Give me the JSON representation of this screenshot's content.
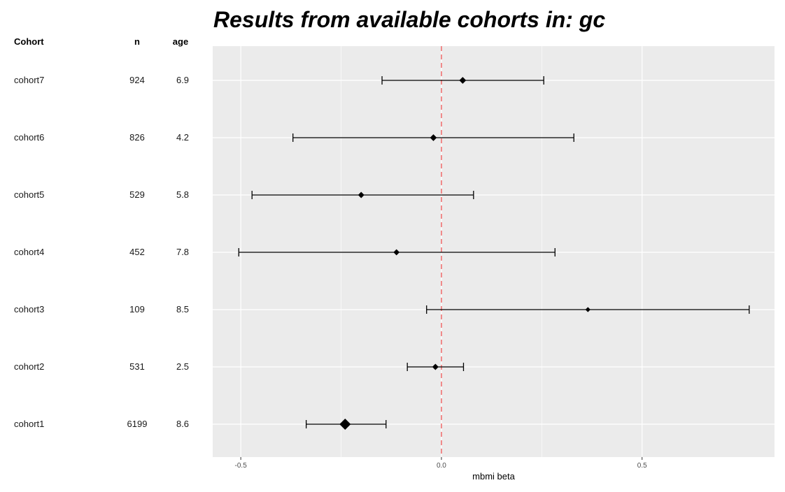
{
  "title": "Results from available cohorts in: gc",
  "table": {
    "headers": {
      "cohort": "Cohort",
      "n": "n",
      "age": "age"
    },
    "rows": [
      {
        "cohort": "cohort7",
        "n": "924",
        "age": "6.9"
      },
      {
        "cohort": "cohort6",
        "n": "826",
        "age": "4.2"
      },
      {
        "cohort": "cohort5",
        "n": "529",
        "age": "5.8"
      },
      {
        "cohort": "cohort4",
        "n": "452",
        "age": "7.8"
      },
      {
        "cohort": "cohort3",
        "n": "109",
        "age": "8.5"
      },
      {
        "cohort": "cohort2",
        "n": "531",
        "age": "2.5"
      },
      {
        "cohort": "cohort1",
        "n": "6199",
        "age": "8.6"
      }
    ]
  },
  "chart_data": {
    "type": "scatter",
    "subtype": "forest-plot",
    "title": "Results from available cohorts in: gc",
    "xlabel": "mbmi beta",
    "ylabel": "",
    "xlim": [
      -0.57,
      0.83
    ],
    "xticks": [
      -0.5,
      0.0,
      0.5
    ],
    "xtick_labels": [
      "-0.5",
      "0.0",
      "0.5"
    ],
    "reference_line": 0.0,
    "grid": true,
    "legend": "none",
    "colors": {
      "panel": "#EBEBEB",
      "grid": "#FFFFFF",
      "points": "#000000",
      "reference_line": "#F08080"
    },
    "series": [
      {
        "categories": [
          "cohort7",
          "cohort6",
          "cohort5",
          "cohort4",
          "cohort3",
          "cohort2",
          "cohort1"
        ],
        "estimate": [
          0.053,
          -0.02,
          -0.2,
          -0.112,
          0.365,
          -0.015,
          -0.24
        ],
        "lower": [
          -0.148,
          -0.37,
          -0.472,
          -0.505,
          -0.037,
          -0.085,
          -0.337
        ],
        "upper": [
          0.255,
          0.33,
          0.08,
          0.283,
          0.767,
          0.055,
          -0.138
        ],
        "weight_n": [
          924,
          826,
          529,
          452,
          109,
          531,
          6199
        ]
      }
    ]
  }
}
